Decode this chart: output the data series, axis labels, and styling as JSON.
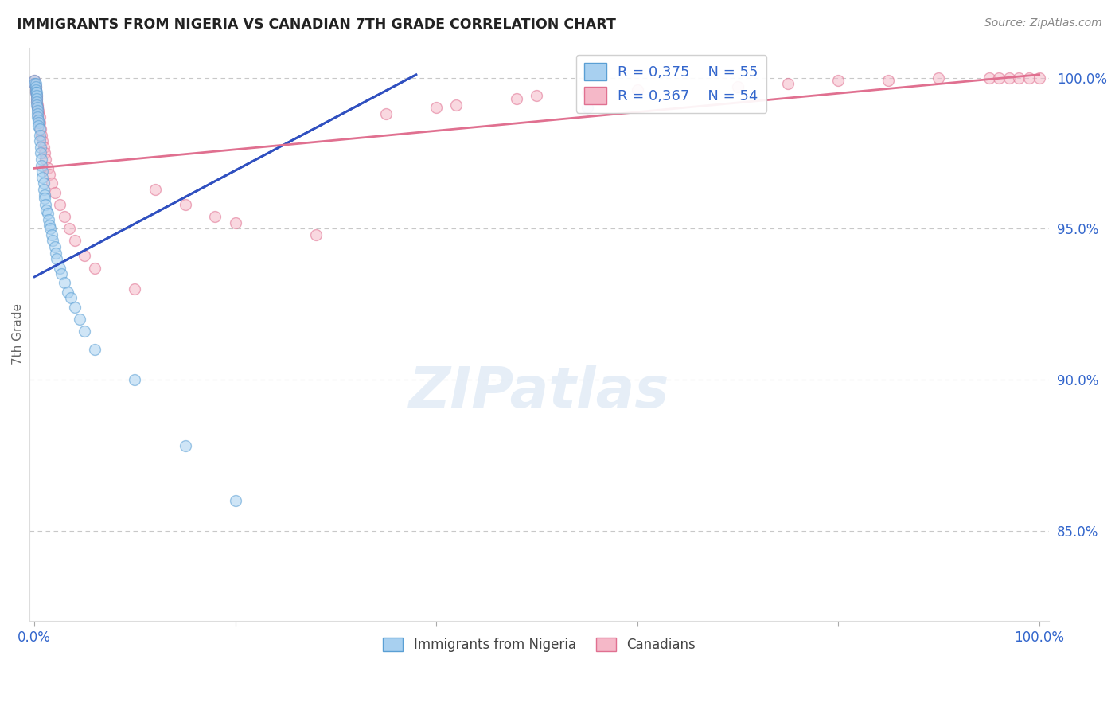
{
  "title": "IMMIGRANTS FROM NIGERIA VS CANADIAN 7TH GRADE CORRELATION CHART",
  "source": "Source: ZipAtlas.com",
  "ylabel": "7th Grade",
  "legend_r1": "R = 0,375",
  "legend_n1": "N = 55",
  "legend_r2": "R = 0,367",
  "legend_n2": "N = 54",
  "blue_fill": "#a8d0f0",
  "blue_edge": "#5a9fd4",
  "pink_fill": "#f5b8c8",
  "pink_edge": "#e07090",
  "blue_line_color": "#3050c0",
  "pink_line_color": "#e07090",
  "grid_color": "#c8c8c8",
  "background_color": "#ffffff",
  "legend_label_color": "#3366cc",
  "axis_label_color": "#3366cc",
  "ylabel_color": "#666666",
  "title_color": "#222222",
  "source_color": "#888888",
  "blue_scatter_x": [
    0.0,
    0.0,
    0.001,
    0.001,
    0.001,
    0.001,
    0.002,
    0.002,
    0.002,
    0.002,
    0.002,
    0.003,
    0.003,
    0.003,
    0.003,
    0.004,
    0.004,
    0.004,
    0.005,
    0.005,
    0.005,
    0.006,
    0.006,
    0.007,
    0.007,
    0.008,
    0.008,
    0.009,
    0.009,
    0.01,
    0.01,
    0.011,
    0.012,
    0.013,
    0.014,
    0.015,
    0.016,
    0.017,
    0.018,
    0.02,
    0.021,
    0.022,
    0.025,
    0.027,
    0.03,
    0.033,
    0.036,
    0.04,
    0.045,
    0.05,
    0.06,
    0.1,
    0.15,
    0.2,
    0.55
  ],
  "blue_scatter_y": [
    0.999,
    0.998,
    0.998,
    0.997,
    0.996,
    0.995,
    0.995,
    0.994,
    0.993,
    0.992,
    0.991,
    0.99,
    0.989,
    0.988,
    0.987,
    0.986,
    0.985,
    0.984,
    0.983,
    0.981,
    0.979,
    0.977,
    0.975,
    0.973,
    0.971,
    0.969,
    0.967,
    0.965,
    0.963,
    0.961,
    0.96,
    0.958,
    0.956,
    0.955,
    0.953,
    0.951,
    0.95,
    0.948,
    0.946,
    0.944,
    0.942,
    0.94,
    0.937,
    0.935,
    0.932,
    0.929,
    0.927,
    0.924,
    0.92,
    0.916,
    0.91,
    0.9,
    0.878,
    0.86,
    0.99
  ],
  "pink_scatter_x": [
    0.0,
    0.0,
    0.001,
    0.001,
    0.001,
    0.002,
    0.002,
    0.002,
    0.003,
    0.003,
    0.004,
    0.004,
    0.005,
    0.005,
    0.006,
    0.007,
    0.008,
    0.009,
    0.01,
    0.011,
    0.013,
    0.015,
    0.017,
    0.02,
    0.025,
    0.03,
    0.035,
    0.04,
    0.05,
    0.06,
    0.1,
    0.12,
    0.15,
    0.18,
    0.2,
    0.28,
    0.35,
    0.4,
    0.42,
    0.48,
    0.5,
    0.55,
    0.6,
    0.7,
    0.75,
    0.8,
    0.85,
    0.9,
    0.95,
    0.96,
    0.97,
    0.98,
    0.99,
    1.0
  ],
  "pink_scatter_y": [
    0.999,
    0.998,
    0.997,
    0.996,
    0.995,
    0.994,
    0.993,
    0.992,
    0.991,
    0.99,
    0.989,
    0.988,
    0.987,
    0.985,
    0.983,
    0.981,
    0.979,
    0.977,
    0.975,
    0.973,
    0.97,
    0.968,
    0.965,
    0.962,
    0.958,
    0.954,
    0.95,
    0.946,
    0.941,
    0.937,
    0.93,
    0.963,
    0.958,
    0.954,
    0.952,
    0.948,
    0.988,
    0.99,
    0.991,
    0.993,
    0.994,
    0.995,
    0.996,
    0.997,
    0.998,
    0.999,
    0.999,
    1.0,
    1.0,
    1.0,
    1.0,
    1.0,
    1.0,
    1.0
  ],
  "blue_line_x0": 0.0,
  "blue_line_y0": 0.934,
  "blue_line_x1": 0.38,
  "blue_line_y1": 1.001,
  "pink_line_x0": 0.0,
  "pink_line_y0": 0.97,
  "pink_line_x1": 1.0,
  "pink_line_y1": 1.001,
  "ylim_min": 0.82,
  "ylim_max": 1.01,
  "xlim_min": -0.005,
  "xlim_max": 1.01,
  "ytick_values": [
    1.0,
    0.95,
    0.9,
    0.85
  ],
  "ytick_labels": [
    "100.0%",
    "95.0%",
    "90.0%",
    "85.0%"
  ],
  "xtick_values": [
    0.0,
    0.2,
    0.4,
    0.6,
    0.8,
    1.0
  ],
  "marker_size": 100,
  "marker_alpha": 0.55,
  "marker_linewidth": 1.0
}
